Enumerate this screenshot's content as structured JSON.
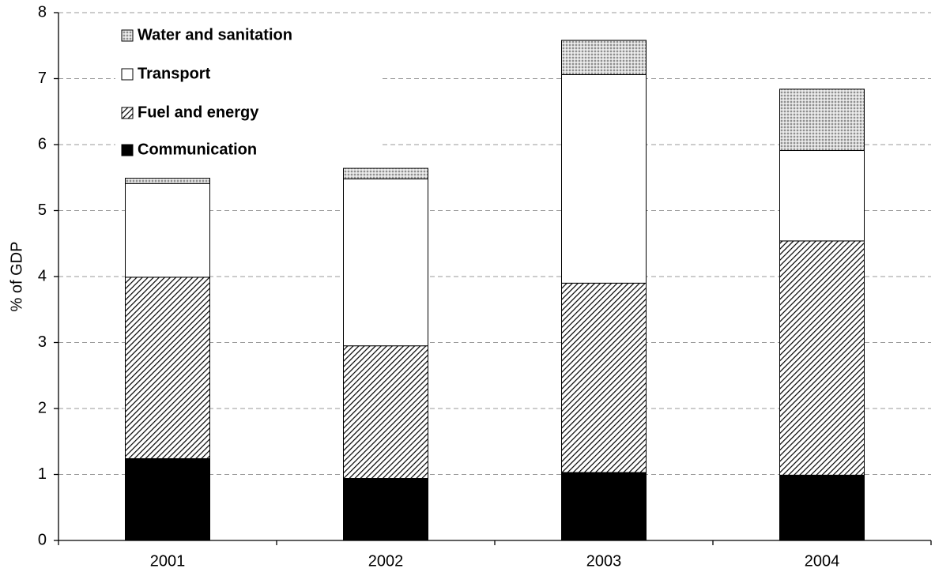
{
  "chart_data": {
    "type": "bar",
    "stacked": true,
    "title": "",
    "xlabel": "",
    "ylabel": "% of GDP",
    "ylim": [
      0,
      8
    ],
    "yticks": [
      "0",
      "1",
      "2",
      "3",
      "4",
      "5",
      "6",
      "7",
      "8"
    ],
    "grid": "horizontal dashed",
    "legend_position": "top-left",
    "categories": [
      "2001",
      "2002",
      "2003",
      "2004"
    ],
    "series": [
      {
        "name": "Communication",
        "values": [
          1.24,
          0.94,
          1.03,
          0.99
        ],
        "fill": "solid",
        "color": "#000000"
      },
      {
        "name": "Fuel and energy",
        "values": [
          2.75,
          2.01,
          2.87,
          3.55
        ],
        "fill": "diagonal-hatch",
        "color": "#000000"
      },
      {
        "name": "Transport",
        "values": [
          1.42,
          2.53,
          3.16,
          1.37
        ],
        "fill": "white",
        "color": "#ffffff"
      },
      {
        "name": "Water and sanitation",
        "values": [
          0.08,
          0.16,
          0.52,
          0.93
        ],
        "fill": "dotted",
        "color": "#bdbdbd"
      }
    ],
    "legend": [
      {
        "label": "Water and sanitation",
        "fill": "dotted"
      },
      {
        "label": "Transport",
        "fill": "white"
      },
      {
        "label": "Fuel and energy",
        "fill": "diagonal-hatch"
      },
      {
        "label": "Communication",
        "fill": "solid"
      }
    ]
  }
}
